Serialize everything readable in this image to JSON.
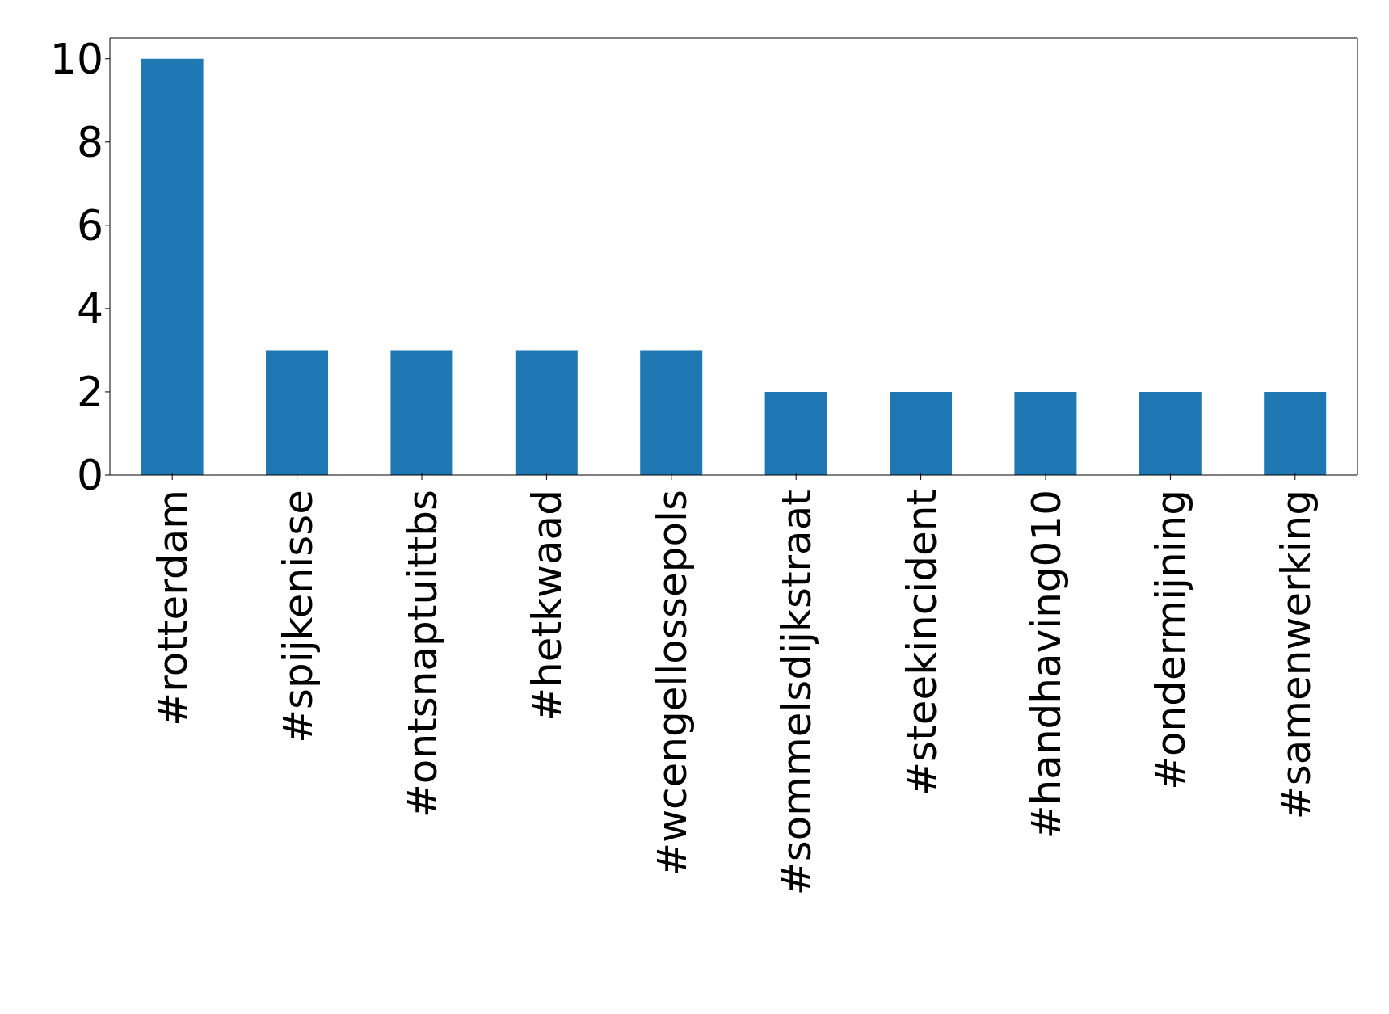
{
  "chart_data": {
    "type": "bar",
    "categories": [
      "#rotterdam",
      "#spijkenisse",
      "#ontsnaptuittbs",
      "#hetkwaad",
      "#wcengellossepols",
      "#sommelsdijkstraat",
      "#steekincident",
      "#handhaving010",
      "#ondermijning",
      "#samenwerking"
    ],
    "values": [
      10,
      3,
      3,
      3,
      3,
      2,
      2,
      2,
      2,
      2
    ],
    "color": "#1f77b4",
    "ylim": [
      0,
      10.5
    ],
    "yticks": [
      0,
      2,
      4,
      6,
      8,
      10
    ],
    "grid": false,
    "legend": false
  }
}
